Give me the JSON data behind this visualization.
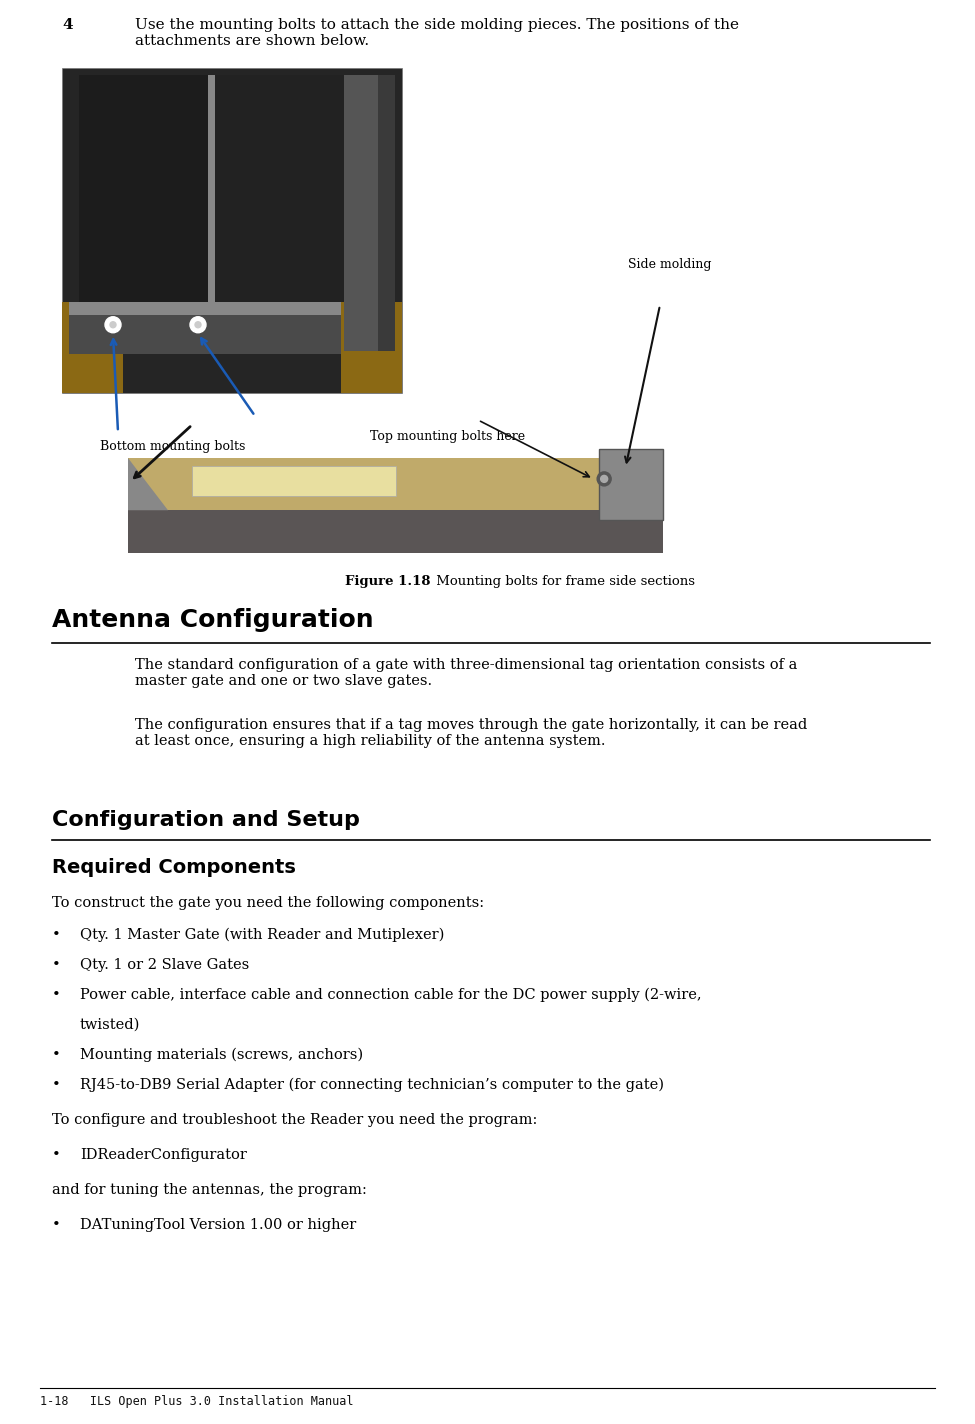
{
  "bg_color": "#ffffff",
  "page_width": 9.75,
  "page_height": 14.24,
  "dpi": 100,
  "footer_text": "1-18   ILS Open Plus 3.0 Installation Manual",
  "step4_number": "4",
  "step4_text": "Use the mounting bolts to attach the side molding pieces. The positions of the\nattachments are shown below.",
  "figure_caption_bold": "Figure 1.18",
  "figure_caption_normal": " Mounting bolts for frame side sections",
  "label_bottom": "Bottom mounting bolts",
  "label_top": "Top mounting bolts here",
  "label_side": "Side molding",
  "section1_title": "Antenna Configuration",
  "section1_para1": "The standard configuration of a gate with three-dimensional tag orientation consists of a\nmaster gate and one or two slave gates.",
  "section1_para2": "The configuration ensures that if a tag moves through the gate horizontally, it can be read\nat least once, ensuring a high reliability of the antenna system.",
  "section2_title": "Configuration and Setup",
  "section3_title": "Required Components",
  "section3_intro": "To construct the gate you need the following components:",
  "bullet_items": [
    "Qty. 1 Master Gate (with Reader and Mutiplexer)",
    "Qty. 1 or 2 Slave Gates",
    "Power cable, interface cable and connection cable for the DC power supply (2-wire,\ntwisted)",
    "Mounting materials (screws, anchors)",
    "RJ45-to-DB9 Serial Adapter (for connecting technician’s computer to the gate)"
  ],
  "config_intro": "To configure and troubleshoot the Reader you need the program:",
  "config_bullet": "IDReaderConfigurator",
  "tuning_intro": "and for tuning the antennas, the program:",
  "tuning_bullet": "DATuningTool Version 1.00 or higher",
  "top_photo_color": "#2d2d2d",
  "top_photo_mid": "#3a3a3a",
  "top_photo_right": "#4a4a4a",
  "bottom_photo_tan": "#c8b87a",
  "bottom_photo_dark": "#5a5a5a"
}
